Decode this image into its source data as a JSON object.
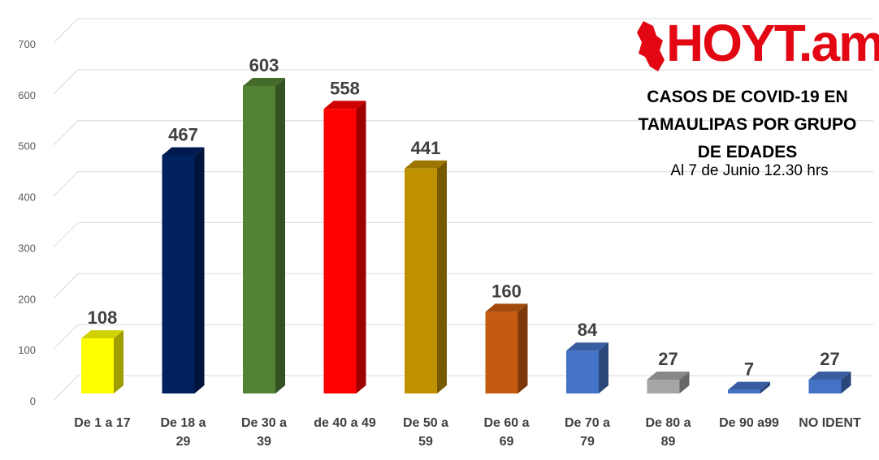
{
  "chart_data": {
    "type": "bar",
    "categories": [
      "De 1 a 17",
      "De 18 a 29",
      "De 30 a 39",
      "de 40 a 49",
      "De 50 a 59",
      "De 60 a 69",
      "De 70 a 79",
      "De 80 a 89",
      "De 90 a99",
      "NO IDENT"
    ],
    "category_lines": [
      [
        "De 1 a 17"
      ],
      [
        "De 18 a",
        "29"
      ],
      [
        "De 30 a",
        "39"
      ],
      [
        "de 40 a 49"
      ],
      [
        "De 50 a",
        "59"
      ],
      [
        "De 60 a",
        "69"
      ],
      [
        "De 70 a",
        "79"
      ],
      [
        "De 80 a",
        "89"
      ],
      [
        "De 90 a99"
      ],
      [
        "NO IDENT"
      ]
    ],
    "values": [
      108,
      467,
      603,
      558,
      441,
      160,
      84,
      27,
      7,
      27
    ],
    "colors": [
      "#ffff00",
      "#002060",
      "#548235",
      "#ff0000",
      "#bf9000",
      "#c55a11",
      "#4472c4",
      "#a6a6a6",
      "#4472c4",
      "#4472c4"
    ],
    "title": "CASOS DE COVID-19 EN TAMAULIPAS POR GRUPO DE EDADES",
    "subtitle": "Al 7 de Junio 12.30 hrs",
    "xlabel": "",
    "ylabel": "",
    "ylim": [
      0,
      700
    ],
    "yticks": [
      0,
      100,
      200,
      300,
      400,
      500,
      600,
      700
    ],
    "grid": true,
    "legend": "none",
    "style": "3d-column"
  },
  "header": {
    "title_lines": "CASOS DE COVID-19 EN\nTAMAULIPAS POR GRUPO\nDE EDADES",
    "subtitle": "Al 7 de Junio 12.30 hrs"
  },
  "logo": {
    "text": "HOYT.am",
    "color": "#e30613"
  }
}
